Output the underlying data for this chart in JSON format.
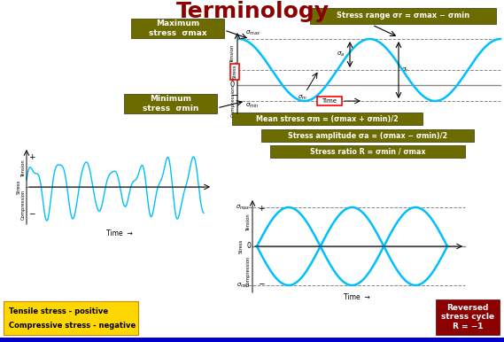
{
  "title": "Terminology",
  "title_color": "#8B0000",
  "title_fontsize": 18,
  "bg_color": "#FFFFFF",
  "wave_color": "#00BFFF",
  "wave_linewidth": 1.8,
  "olive_bg": "#6B6B00",
  "dark_red_bg": "#8B0000",
  "box1_text": "Maximum\nstress  σmax",
  "box2_text": "Minimum\nstress  σmin",
  "box3_text": "Stress range σr = σmax − σmin",
  "box4_text": "Mean stress σm = (σmax + σmin)/2",
  "box5_text": "Stress amplitude σa = (σmax − σmin)/2",
  "box6_text": "Stress ratio R = σmin / σmax",
  "box7_text": "Reversed\nstress cycle\nR = −1",
  "bottom_box_color": "#FFD700",
  "blue_bar_color": "#0000CC"
}
